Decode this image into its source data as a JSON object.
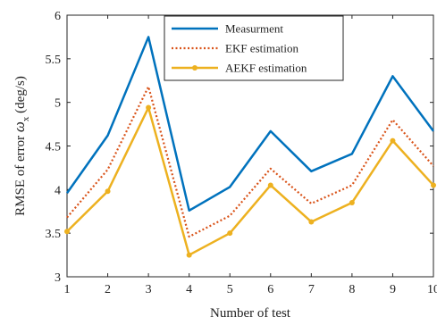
{
  "chart_data": {
    "type": "line",
    "xlabel": "Number of test",
    "ylabel_parts": [
      "RMSE of error ",
      "ω",
      "x",
      " (deg/s)"
    ],
    "x": [
      1,
      2,
      3,
      4,
      5,
      6,
      7,
      8,
      9,
      10
    ],
    "xlim": [
      1,
      10
    ],
    "ylim": [
      3,
      6
    ],
    "xticks": [
      "1",
      "2",
      "3",
      "4",
      "5",
      "6",
      "7",
      "8",
      "9",
      "10"
    ],
    "yticks": [
      "3",
      "3.5",
      "4",
      "4.5",
      "5",
      "5.5",
      "6"
    ],
    "ytick_values": [
      3,
      3.5,
      4,
      4.5,
      5,
      5.5,
      6
    ],
    "grid": false,
    "legend_position": "top-center",
    "series": [
      {
        "name": "Measurment",
        "color": "#0072BD",
        "style": "solid",
        "marker": "none",
        "values": [
          3.96,
          4.62,
          5.75,
          3.76,
          4.03,
          4.67,
          4.21,
          4.41,
          5.3,
          4.67
        ]
      },
      {
        "name": "EKF estimation",
        "color": "#D95319",
        "style": "dotted",
        "marker": "none",
        "values": [
          3.68,
          4.23,
          5.18,
          3.46,
          3.7,
          4.24,
          3.84,
          4.05,
          4.8,
          4.27
        ]
      },
      {
        "name": "AEKF estimation",
        "color": "#EDB120",
        "style": "solid",
        "marker": "dot",
        "values": [
          3.52,
          3.98,
          4.94,
          3.25,
          3.5,
          4.05,
          3.63,
          3.85,
          4.56,
          4.05
        ]
      }
    ]
  }
}
